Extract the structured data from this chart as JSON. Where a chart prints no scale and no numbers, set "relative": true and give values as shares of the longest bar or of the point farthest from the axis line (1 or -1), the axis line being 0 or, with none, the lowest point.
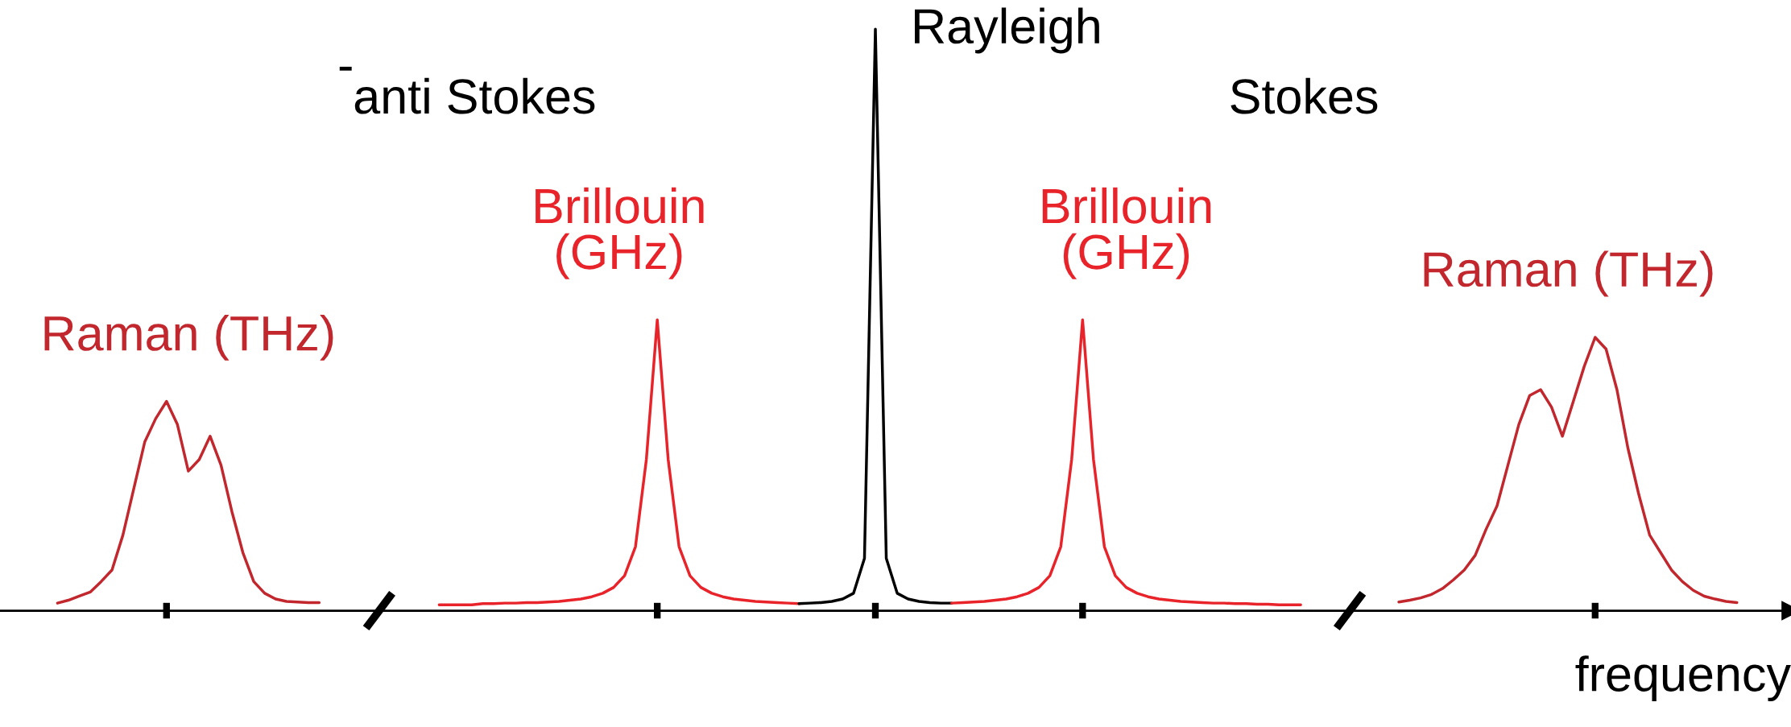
{
  "chart_data": {
    "type": "line",
    "relative": true,
    "xlabel": "frequency",
    "categories": [
      null,
      null,
      null,
      null,
      null,
      null,
      null,
      null,
      null,
      null,
      null,
      null,
      null,
      null,
      null,
      null,
      null,
      null,
      null,
      null,
      null,
      null,
      null,
      null,
      null,
      null,
      null,
      null,
      null,
      null,
      null,
      null,
      null,
      null,
      null,
      null,
      null,
      null,
      null,
      null,
      null,
      null,
      null,
      null,
      null,
      null,
      null,
      null,
      null,
      null,
      null,
      null,
      null,
      null,
      null,
      null,
      null,
      null,
      null,
      null,
      null,
      null,
      null,
      null,
      null,
      null,
      null,
      null,
      null,
      null,
      null,
      null,
      null,
      null,
      null,
      null,
      null,
      null,
      null,
      null,
      null,
      null,
      null,
      null,
      null,
      null,
      null,
      null,
      null,
      null,
      null,
      null,
      null,
      null,
      null,
      null,
      null,
      null,
      null,
      null,
      null,
      null,
      null,
      null,
      null,
      null,
      null,
      null,
      null,
      null,
      null,
      null,
      null,
      null,
      null,
      null,
      null,
      null,
      null,
      null,
      null,
      null,
      null,
      null,
      null,
      null,
      null,
      null,
      null,
      null,
      null,
      null,
      null,
      null,
      null,
      null,
      null,
      null,
      null,
      null,
      null,
      null,
      null,
      null,
      null,
      null,
      null,
      null,
      null,
      null,
      null,
      null,
      null,
      null,
      null
    ],
    "tick_labels": false,
    "legend": false,
    "grid": false,
    "marker": "none",
    "line_style": "solid",
    "series": [
      {
        "name": "Raman (THz)",
        "color": "#c1272d",
        "values": [
          0.013,
          0.018,
          0.025,
          0.032,
          0.05,
          0.07,
          0.13,
          0.21,
          0.29,
          0.33,
          0.36,
          0.32,
          0.24,
          0.26,
          0.3,
          0.25,
          0.17,
          0.1,
          0.05,
          0.03,
          0.02,
          0.016,
          0.015,
          0.014,
          0.014,
          null,
          null,
          null,
          null,
          null,
          null,
          null,
          null,
          null,
          null,
          null,
          null,
          null,
          null,
          null,
          null,
          null,
          null,
          null,
          null,
          null,
          null,
          null,
          null,
          null,
          null,
          null,
          null,
          null,
          null,
          null,
          null,
          null,
          null,
          null,
          null,
          null,
          null,
          null,
          null,
          null,
          null,
          null,
          null,
          null,
          null,
          null,
          null,
          null,
          null,
          null,
          null,
          null,
          null,
          null,
          null,
          null,
          null,
          null,
          null,
          null,
          null,
          null,
          null,
          null,
          null,
          null,
          null,
          null,
          null,
          null,
          null,
          null,
          null,
          null,
          null,
          null,
          null,
          null,
          null,
          null,
          null,
          null,
          null,
          null,
          null,
          null,
          null,
          null,
          null,
          null,
          null,
          null,
          null,
          null,
          null,
          null,
          null,
          null,
          null,
          null,
          null,
          null,
          null,
          null,
          null,
          null,
          null,
          null,
          null,
          null,
          null,
          null,
          null,
          null,
          null,
          null,
          null,
          null,
          null,
          null,
          null,
          null,
          null,
          null,
          null,
          null,
          null,
          null,
          null
        ]
      },
      {
        "name": "Brillouin\n(GHz)",
        "color": "#e8232a",
        "values": [
          null,
          null,
          null,
          null,
          null,
          null,
          null,
          null,
          null,
          null,
          null,
          null,
          null,
          null,
          null,
          null,
          null,
          null,
          null,
          null,
          null,
          null,
          null,
          null,
          null,
          null,
          null,
          null,
          null,
          null,
          null,
          null,
          null,
          null,
          null,
          0.01,
          0.01,
          0.01,
          0.01,
          0.012,
          0.012,
          0.013,
          0.013,
          0.014,
          0.014,
          0.015,
          0.016,
          0.018,
          0.02,
          0.024,
          0.03,
          0.04,
          0.06,
          0.11,
          0.26,
          0.5,
          0.26,
          0.11,
          0.06,
          0.04,
          0.03,
          0.024,
          0.02,
          0.018,
          0.016,
          0.015,
          0.014,
          0.013,
          0.012,
          null,
          null,
          null,
          null,
          null,
          null,
          null,
          null,
          null,
          null,
          null,
          null,
          null,
          null,
          null,
          null,
          null,
          null,
          null,
          null,
          null,
          null,
          null,
          null,
          null,
          null,
          null,
          null,
          null,
          null,
          null,
          null,
          null,
          null,
          null,
          null,
          null,
          null,
          null,
          null,
          null,
          null,
          null,
          null,
          null,
          null,
          null,
          null,
          null,
          null,
          null,
          null,
          null,
          null,
          null,
          null,
          null,
          null,
          null,
          null,
          null,
          null,
          null,
          null,
          null,
          null,
          null,
          null,
          null,
          null,
          null,
          null,
          null,
          null,
          null,
          null,
          null,
          null,
          null,
          null,
          null,
          null,
          null,
          null,
          null,
          null
        ]
      },
      {
        "color": "#000000",
        "values": [
          null,
          null,
          null,
          null,
          null,
          null,
          null,
          null,
          null,
          null,
          null,
          null,
          null,
          null,
          null,
          null,
          null,
          null,
          null,
          null,
          null,
          null,
          null,
          null,
          null,
          null,
          null,
          null,
          null,
          null,
          null,
          null,
          null,
          null,
          null,
          null,
          null,
          null,
          null,
          null,
          null,
          null,
          null,
          null,
          null,
          null,
          null,
          null,
          null,
          null,
          null,
          null,
          null,
          null,
          null,
          null,
          null,
          null,
          null,
          null,
          null,
          null,
          null,
          null,
          null,
          null,
          null,
          null,
          0.012,
          0.013,
          0.014,
          0.016,
          0.02,
          0.03,
          0.09,
          1.0,
          0.09,
          0.03,
          0.02,
          0.016,
          0.014,
          0.013,
          0.013,
          null,
          null,
          null,
          null,
          null,
          null,
          null,
          null,
          null,
          null,
          null,
          null,
          null,
          null,
          null,
          null,
          null,
          null,
          null,
          null,
          null,
          null,
          null,
          null,
          null,
          null,
          null,
          null,
          null,
          null,
          null,
          null,
          null,
          null,
          null,
          null,
          null,
          null,
          null,
          null,
          null,
          null,
          null,
          null,
          null,
          null,
          null,
          null,
          null,
          null,
          null,
          null,
          null,
          null,
          null,
          null,
          null,
          null,
          null,
          null,
          null,
          null,
          null,
          null,
          null,
          null,
          null,
          null,
          null,
          null,
          null,
          null
        ]
      },
      {
        "name": "Brillouin\n(GHz)",
        "color": "#e8232a",
        "values": [
          null,
          null,
          null,
          null,
          null,
          null,
          null,
          null,
          null,
          null,
          null,
          null,
          null,
          null,
          null,
          null,
          null,
          null,
          null,
          null,
          null,
          null,
          null,
          null,
          null,
          null,
          null,
          null,
          null,
          null,
          null,
          null,
          null,
          null,
          null,
          null,
          null,
          null,
          null,
          null,
          null,
          null,
          null,
          null,
          null,
          null,
          null,
          null,
          null,
          null,
          null,
          null,
          null,
          null,
          null,
          null,
          null,
          null,
          null,
          null,
          null,
          null,
          null,
          null,
          null,
          null,
          null,
          null,
          null,
          null,
          null,
          null,
          null,
          null,
          null,
          null,
          null,
          null,
          null,
          null,
          null,
          null,
          0.013,
          0.014,
          0.015,
          0.016,
          0.018,
          0.02,
          0.024,
          0.03,
          0.04,
          0.06,
          0.11,
          0.26,
          0.5,
          0.26,
          0.11,
          0.06,
          0.04,
          0.03,
          0.024,
          0.02,
          0.018,
          0.016,
          0.015,
          0.014,
          0.013,
          0.013,
          0.012,
          0.012,
          0.011,
          0.011,
          0.01,
          0.01,
          0.01,
          null,
          null,
          null,
          null,
          null,
          null,
          null,
          null,
          null,
          null,
          null,
          null,
          null,
          null,
          null,
          null,
          null,
          null,
          null,
          null,
          null,
          null,
          null,
          null,
          null,
          null,
          null,
          null,
          null,
          null,
          null,
          null,
          null,
          null,
          null,
          null,
          null,
          null,
          null,
          null
        ]
      },
      {
        "name": "Raman (THz)",
        "color": "#c1272d",
        "values": [
          null,
          null,
          null,
          null,
          null,
          null,
          null,
          null,
          null,
          null,
          null,
          null,
          null,
          null,
          null,
          null,
          null,
          null,
          null,
          null,
          null,
          null,
          null,
          null,
          null,
          null,
          null,
          null,
          null,
          null,
          null,
          null,
          null,
          null,
          null,
          null,
          null,
          null,
          null,
          null,
          null,
          null,
          null,
          null,
          null,
          null,
          null,
          null,
          null,
          null,
          null,
          null,
          null,
          null,
          null,
          null,
          null,
          null,
          null,
          null,
          null,
          null,
          null,
          null,
          null,
          null,
          null,
          null,
          null,
          null,
          null,
          null,
          null,
          null,
          null,
          null,
          null,
          null,
          null,
          null,
          null,
          null,
          null,
          null,
          null,
          null,
          null,
          null,
          null,
          null,
          null,
          null,
          null,
          null,
          null,
          null,
          null,
          null,
          null,
          null,
          null,
          null,
          null,
          null,
          null,
          null,
          null,
          null,
          null,
          null,
          null,
          null,
          null,
          null,
          null,
          null,
          null,
          null,
          null,
          null,
          null,
          null,
          null,
          0.015,
          0.018,
          0.022,
          0.028,
          0.038,
          0.053,
          0.07,
          0.095,
          0.14,
          0.18,
          0.25,
          0.32,
          0.37,
          0.38,
          0.35,
          0.3,
          0.36,
          0.42,
          0.47,
          0.45,
          0.38,
          0.28,
          0.2,
          0.13,
          0.1,
          0.07,
          0.05,
          0.035,
          0.025,
          0.02,
          0.016,
          0.014
        ]
      }
    ],
    "annotations": [
      "Rayleigh",
      "-",
      "anti Stokes",
      "Stokes"
    ]
  }
}
